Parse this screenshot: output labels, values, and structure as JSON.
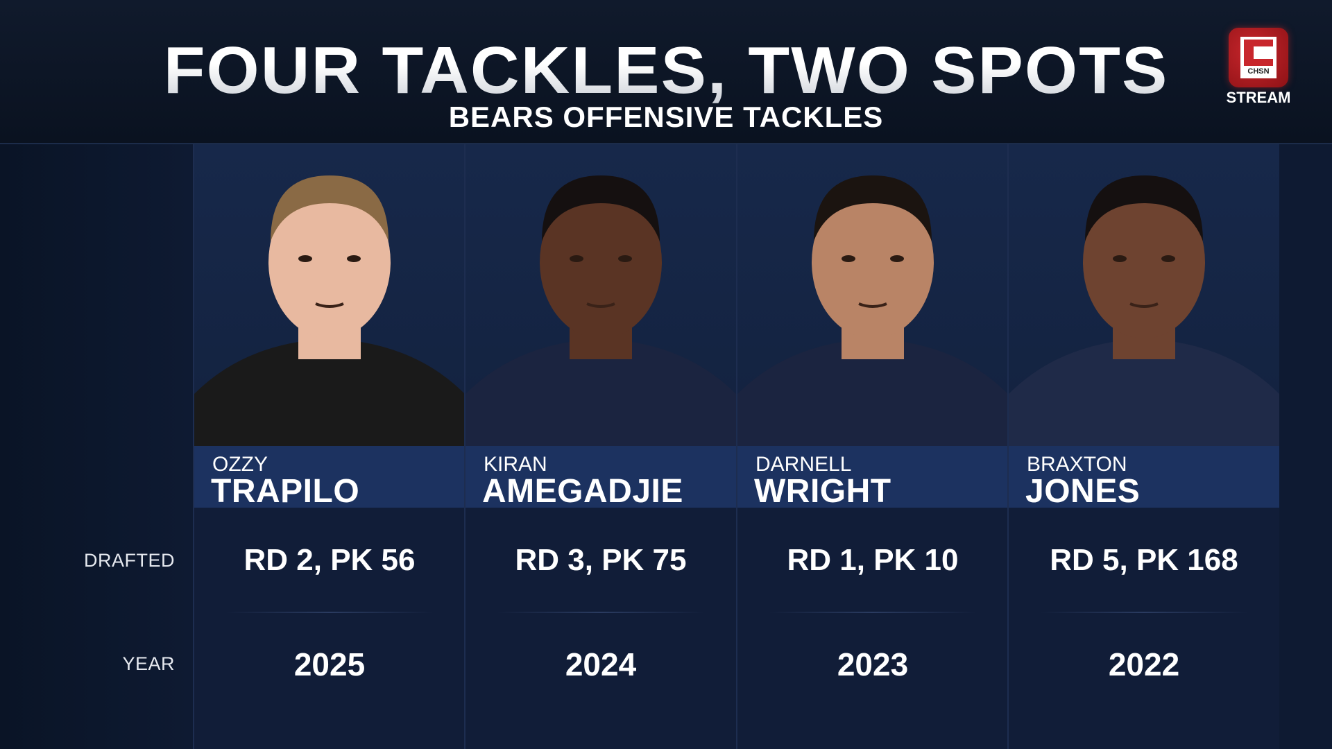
{
  "header": {
    "title": "FOUR TACKLES, TWO SPOTS",
    "subtitle": "BEARS OFFENSIVE TACKLES"
  },
  "logo": {
    "brand": "CHSN",
    "label": "STREAM",
    "color": "#c8262c"
  },
  "row_labels": {
    "drafted": "DRAFTED",
    "year": "YEAR"
  },
  "players": [
    {
      "first": "OZZY",
      "last": "TRAPILO",
      "drafted": "RD 2, PK 56",
      "year": "2025",
      "skin": "#e8b9a0",
      "hair": "#8a6a45",
      "shirt": "#1a1a1a"
    },
    {
      "first": "KIRAN",
      "last": "AMEGADJIE",
      "drafted": "RD 3, PK 75",
      "year": "2024",
      "skin": "#5a3424",
      "hair": "#151010",
      "shirt": "#1b2440"
    },
    {
      "first": "DARNELL",
      "last": "WRIGHT",
      "drafted": "RD 1, PK 10",
      "year": "2023",
      "skin": "#b98466",
      "hair": "#1b1410",
      "shirt": "#1b2440"
    },
    {
      "first": "BRAXTON",
      "last": "JONES",
      "drafted": "RD 5, PK 168",
      "year": "2022",
      "skin": "#6e4330",
      "hair": "#151010",
      "shirt": "#1f2a48"
    }
  ]
}
